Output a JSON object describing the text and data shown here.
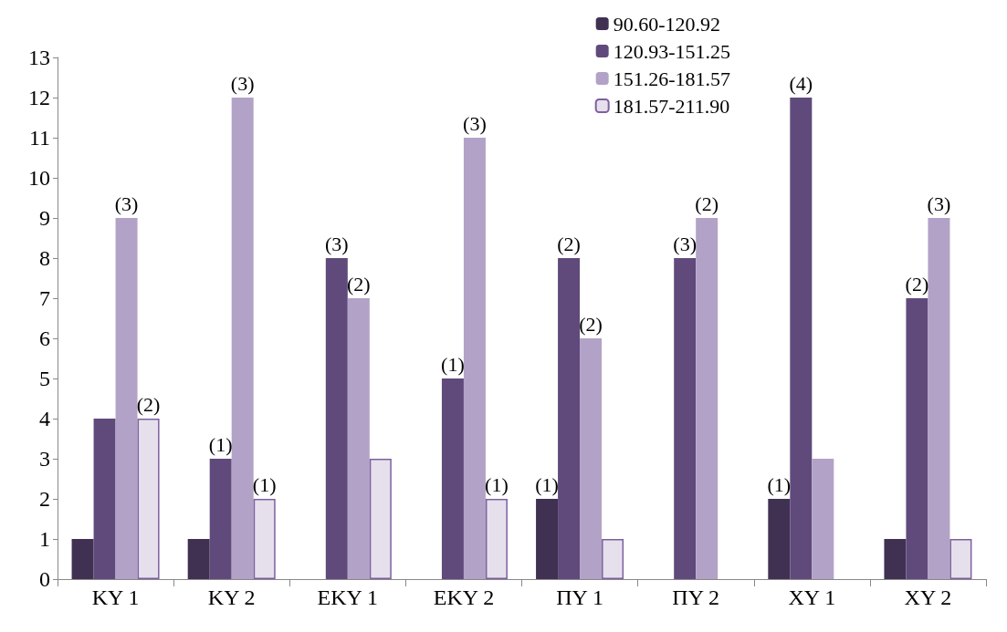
{
  "chart_data": {
    "type": "bar",
    "categories": [
      "ΚΥ 1",
      "ΚΥ 2",
      "ΕΚΥ 1",
      "ΕΚΥ 2",
      "ΠΥ 1",
      "ΠΥ 2",
      "ΧΥ 1",
      "ΧΥ 2"
    ],
    "series": [
      {
        "name": "90.60-120.92",
        "color": "#403152",
        "values": [
          1,
          1,
          null,
          null,
          2,
          null,
          2,
          1
        ]
      },
      {
        "name": "120.93-151.25",
        "color": "#604a7b",
        "values": [
          4,
          3,
          8,
          5,
          8,
          8,
          12,
          7
        ]
      },
      {
        "name": "151.26-181.57",
        "color": "#b3a2c7",
        "values": [
          9,
          12,
          7,
          11,
          6,
          9,
          3,
          9
        ]
      },
      {
        "name": "181.57-211.90",
        "color": "#e6e0ec",
        "values": [
          4,
          2,
          3,
          2,
          1,
          null,
          null,
          1
        ]
      }
    ],
    "annotations": [
      {
        "text": "(3)",
        "x": "ΚΥ 1",
        "y": 9
      },
      {
        "text": "(2)",
        "x": "ΚΥ 1",
        "y": 4
      },
      {
        "text": "(1)",
        "x": "ΚΥ 2",
        "y": 3
      },
      {
        "text": "(3)",
        "x": "ΚΥ 2",
        "y": 12
      },
      {
        "text": "(1)",
        "x": "ΚΥ 2",
        "y": 2
      },
      {
        "text": "(3)",
        "x": "ΕΚΥ 1",
        "y": 8
      },
      {
        "text": "(2)",
        "x": "ΕΚΥ 1",
        "y": 7
      },
      {
        "text": "(1)",
        "x": "ΕΚΥ 2",
        "y": 5
      },
      {
        "text": "(3)",
        "x": "ΕΚΥ 2",
        "y": 11
      },
      {
        "text": "(1)",
        "x": "ΕΚΥ 2",
        "y": 2
      },
      {
        "text": "(1)",
        "x": "ΠΥ 1",
        "y": 2
      },
      {
        "text": "(2)",
        "x": "ΠΥ 1",
        "y": 8
      },
      {
        "text": "(2)",
        "x": "ΠΥ 1",
        "y": 6
      },
      {
        "text": "(3)",
        "x": "ΠΥ 2",
        "y": 8
      },
      {
        "text": "(2)",
        "x": "ΠΥ 2",
        "y": 9
      },
      {
        "text": "(1)",
        "x": "ΧΥ 1",
        "y": 2
      },
      {
        "text": "(4)",
        "x": "ΧΥ 1",
        "y": 12
      },
      {
        "text": "(2)",
        "x": "ΧΥ 2",
        "y": 7
      },
      {
        "text": "(3)",
        "x": "ΧΥ 2",
        "y": 9
      }
    ],
    "ylim": [
      0,
      13
    ],
    "yticks": [
      0,
      1,
      2,
      3,
      4,
      5,
      6,
      7,
      8,
      9,
      10,
      11,
      12,
      13
    ],
    "grid": false,
    "legend": "top right"
  }
}
